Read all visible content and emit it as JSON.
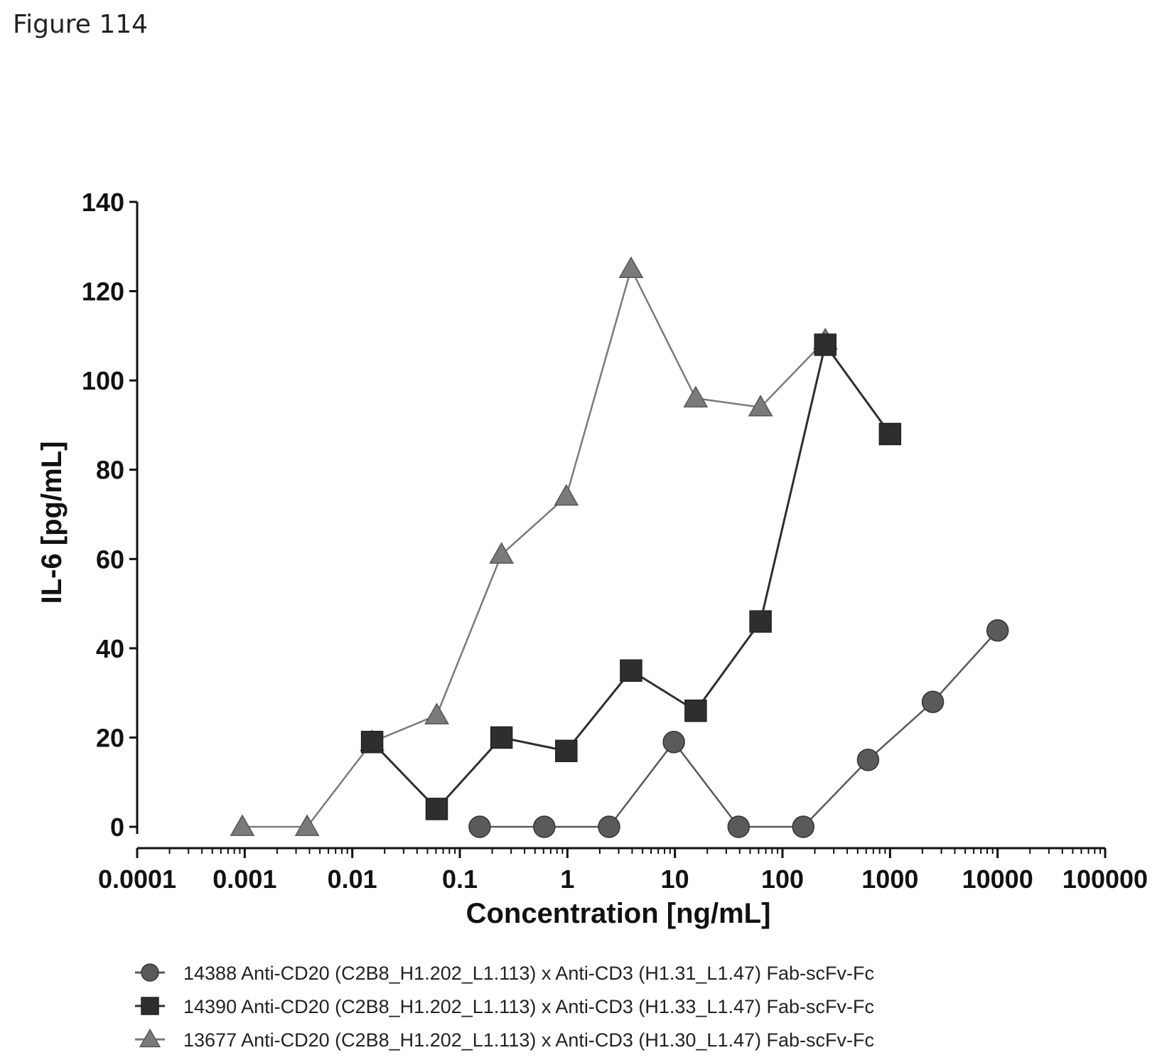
{
  "figure_label": "Figure 114",
  "chart_data": {
    "type": "line",
    "title": "",
    "xlabel": "Concentration [ng/mL]",
    "ylabel": "IL-6 [pg/mL]",
    "x_scale": "log",
    "xlim": [
      0.0001,
      100000
    ],
    "ylim": [
      0,
      140
    ],
    "x_ticks": [
      0.0001,
      0.001,
      0.01,
      0.1,
      1,
      10,
      100,
      1000,
      10000,
      100000
    ],
    "x_tick_labels": [
      "0.0001",
      "0.001",
      "0.01",
      "0.1",
      "1",
      "10",
      "100",
      "1000",
      "10000",
      "100000"
    ],
    "y_ticks": [
      0,
      20,
      40,
      60,
      80,
      100,
      120,
      140
    ],
    "y_tick_labels": [
      "0",
      "20",
      "40",
      "60",
      "80",
      "100",
      "120",
      "140"
    ],
    "grid": false,
    "legend_position": "bottom",
    "series": [
      {
        "name": "14388 Anti-CD20 (C2B8_H1.202_L1.113) x Anti-CD3 (H1.31_L1.47) Fab-scFv-Fc",
        "marker": "circle",
        "color": "#5a5a5a",
        "x": [
          0.153,
          0.61,
          2.44,
          9.77,
          39.1,
          156,
          625,
          2500,
          10000
        ],
        "y": [
          0,
          0,
          0,
          19,
          0,
          0,
          15,
          28,
          44
        ]
      },
      {
        "name": "14390 Anti-CD20 (C2B8_H1.202_L1.113) x Anti-CD3 (H1.33_L1.47) Fab-scFv-Fc",
        "marker": "square",
        "color": "#2e2e2e",
        "x": [
          0.0153,
          0.061,
          0.244,
          0.977,
          3.91,
          15.6,
          62.5,
          250,
          1000
        ],
        "y": [
          19,
          4,
          20,
          17,
          35,
          26,
          46,
          108,
          88
        ]
      },
      {
        "name": "13677 Anti-CD20 (C2B8_H1.202_L1.113) x Anti-CD3 (H1.30_L1.47) Fab-scFv-Fc",
        "marker": "triangle",
        "color": "#7a7a7a",
        "x": [
          0.00095,
          0.0038,
          0.0153,
          0.061,
          0.244,
          0.977,
          3.91,
          15.6,
          62.5,
          250
        ],
        "y": [
          0,
          0,
          19,
          25,
          61,
          74,
          125,
          96,
          94,
          109
        ]
      }
    ]
  }
}
